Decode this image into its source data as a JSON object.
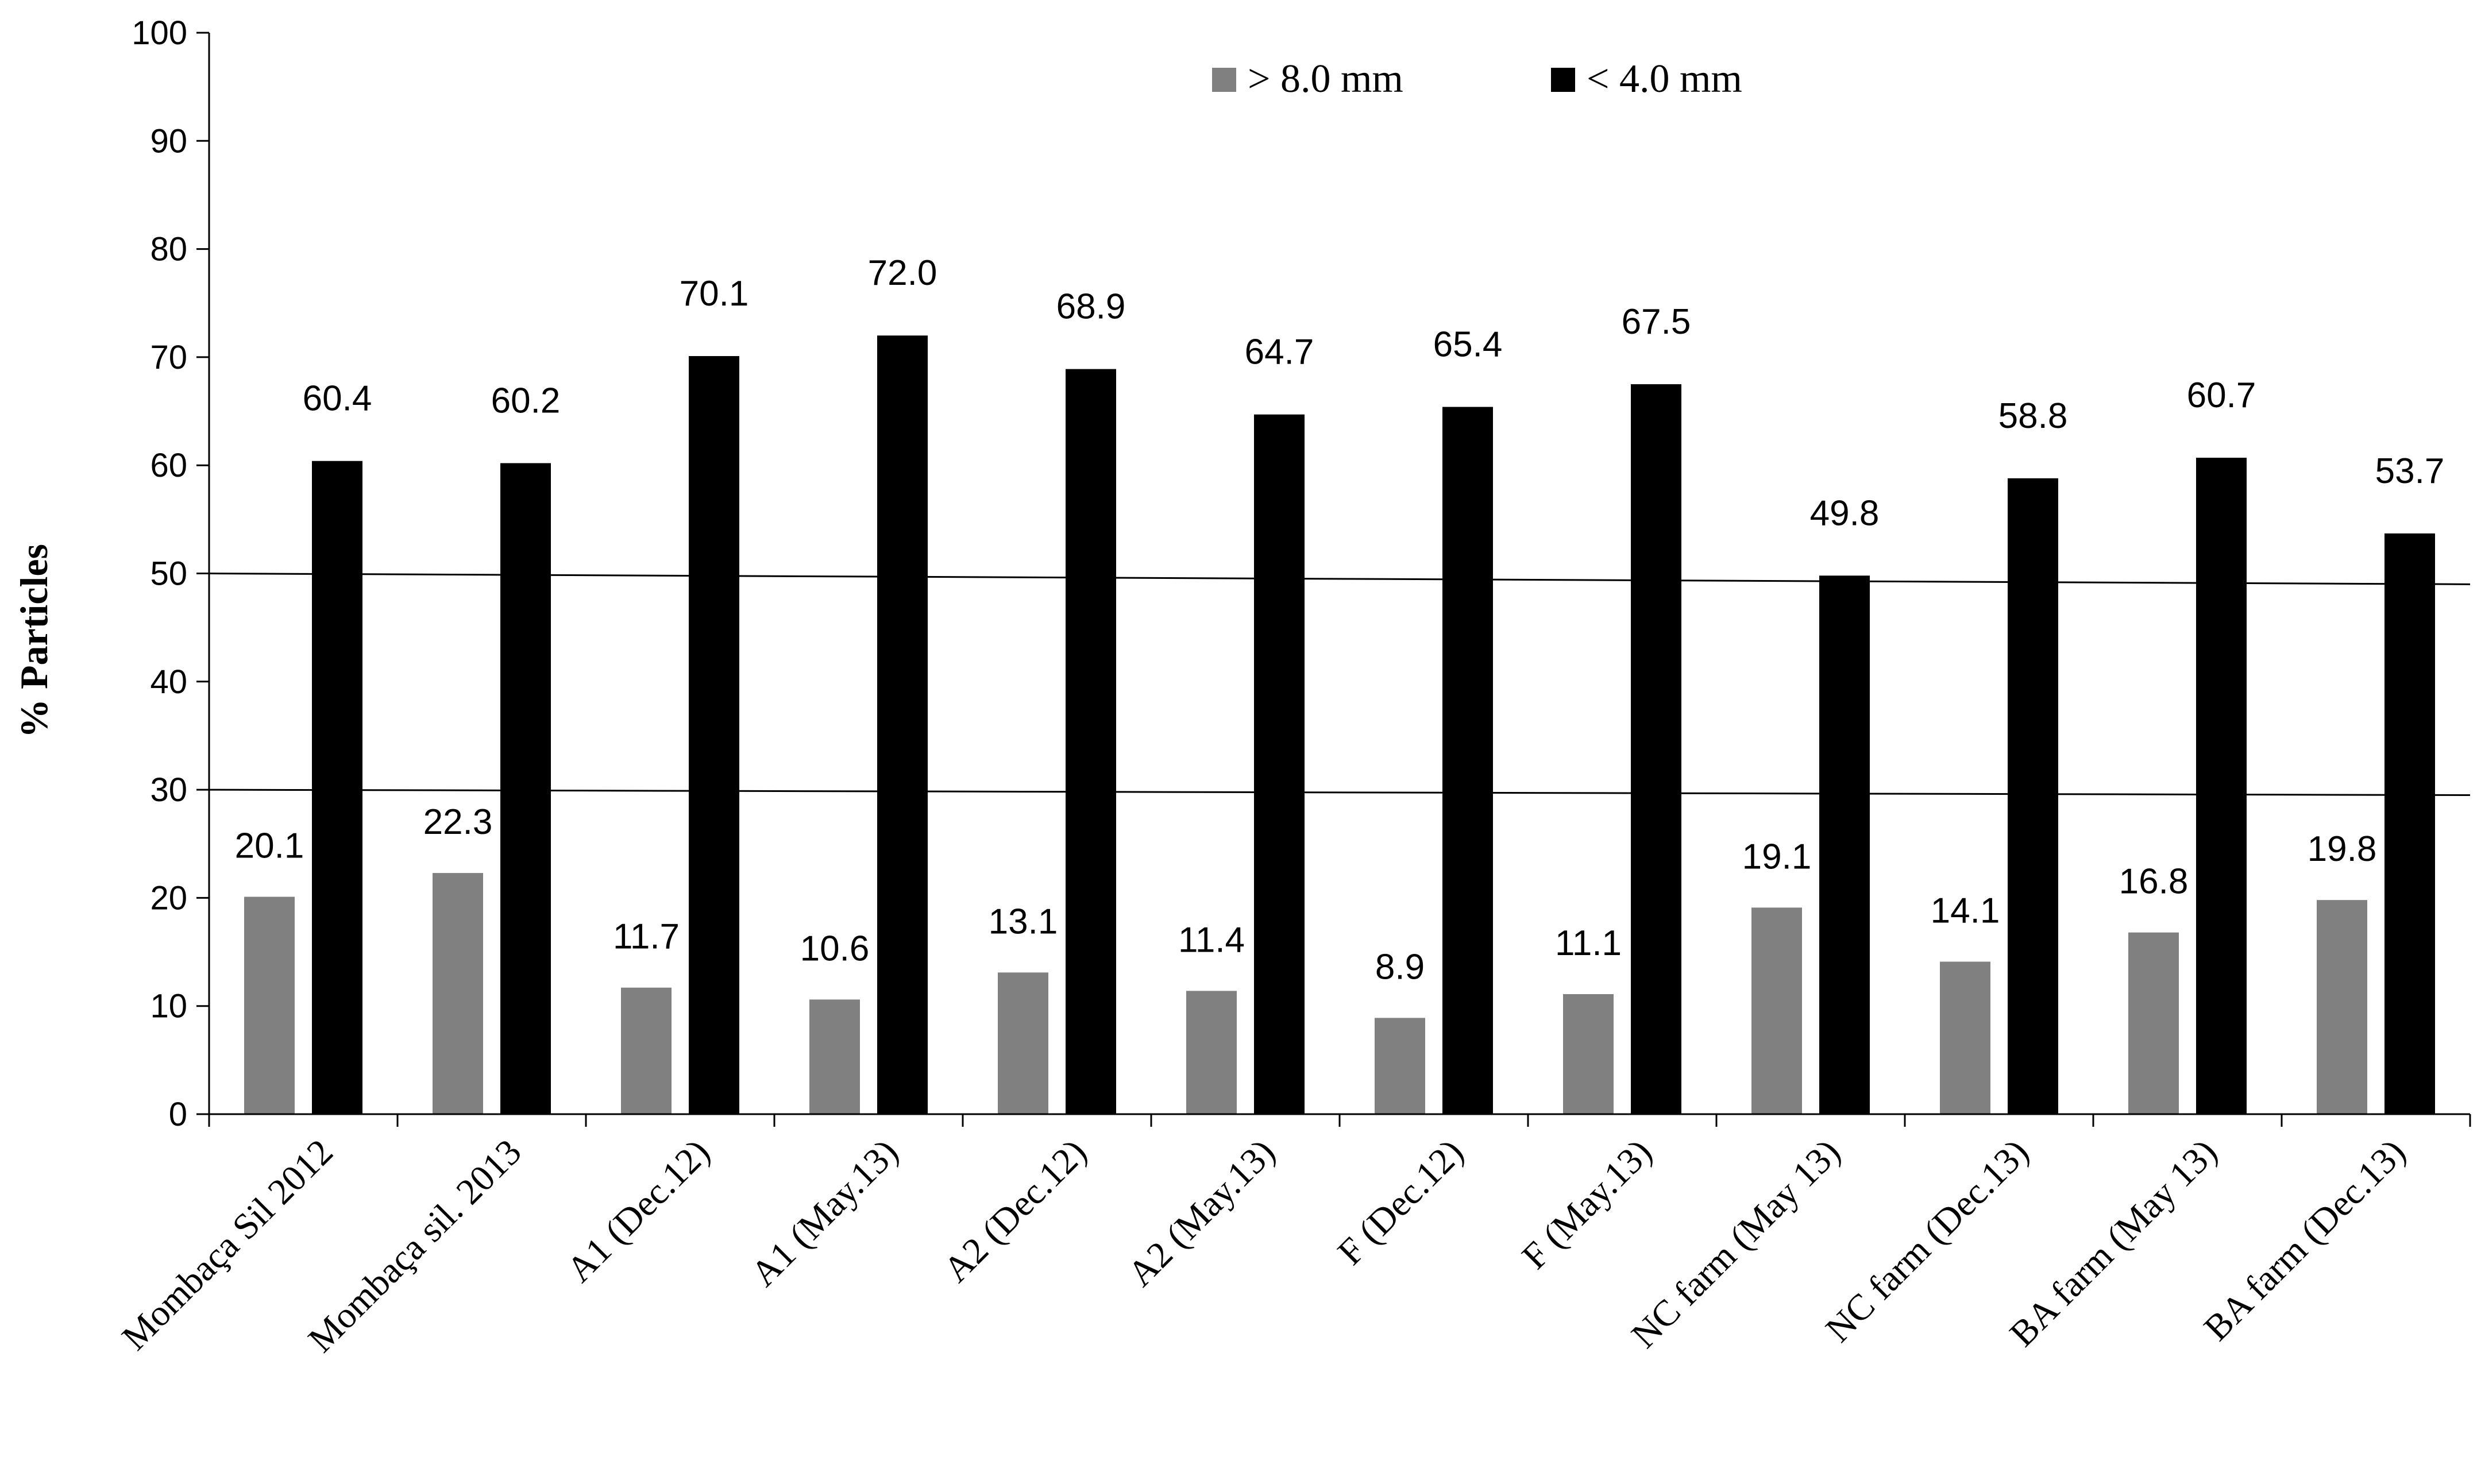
{
  "chart_data": {
    "type": "bar",
    "ylabel": "% Particles",
    "ylim": [
      0,
      100
    ],
    "yticks": [
      0,
      10,
      20,
      30,
      40,
      50,
      60,
      70,
      80,
      90,
      100
    ],
    "categories": [
      "Mombaça Sil 2012",
      "Mombaça sil. 2013",
      "A1 (Dec.12)",
      "A1 (May.13)",
      "A2 (Dec.12)",
      "A2 (May.13)",
      "F (Dec.12)",
      "F (May.13)",
      "NC farm (May 13)",
      "NC farm (Dec.13)",
      "BA farm (May 13)",
      "BA farm (Dec.13)"
    ],
    "series": [
      {
        "name": "> 8.0 mm",
        "color": "#808080",
        "values": [
          20.1,
          22.3,
          11.7,
          10.6,
          13.1,
          11.4,
          8.9,
          11.1,
          19.1,
          14.1,
          16.8,
          19.8
        ],
        "labels": [
          "20.1",
          "22.3",
          "11.7",
          "10.6",
          "13.1",
          "11.4",
          "8.9",
          "11.1",
          "19.1",
          "14.1",
          "16.8",
          "19.8"
        ]
      },
      {
        "name": "< 4.0 mm",
        "color": "#000000",
        "values": [
          60.4,
          60.2,
          70.1,
          72.0,
          68.9,
          64.7,
          65.4,
          67.5,
          49.8,
          58.8,
          60.7,
          53.7
        ],
        "labels": [
          "60.4",
          "60.2",
          "70.1",
          "72.0",
          "68.9",
          "64.7",
          "65.4",
          "67.5",
          "49.8",
          "58.8",
          "60.7",
          "53.7"
        ]
      }
    ],
    "reference_lines": [
      {
        "from": 50,
        "to": 49
      },
      {
        "from": 30,
        "to": 29.5
      }
    ],
    "legend_position": "top-center",
    "grid": false
  }
}
